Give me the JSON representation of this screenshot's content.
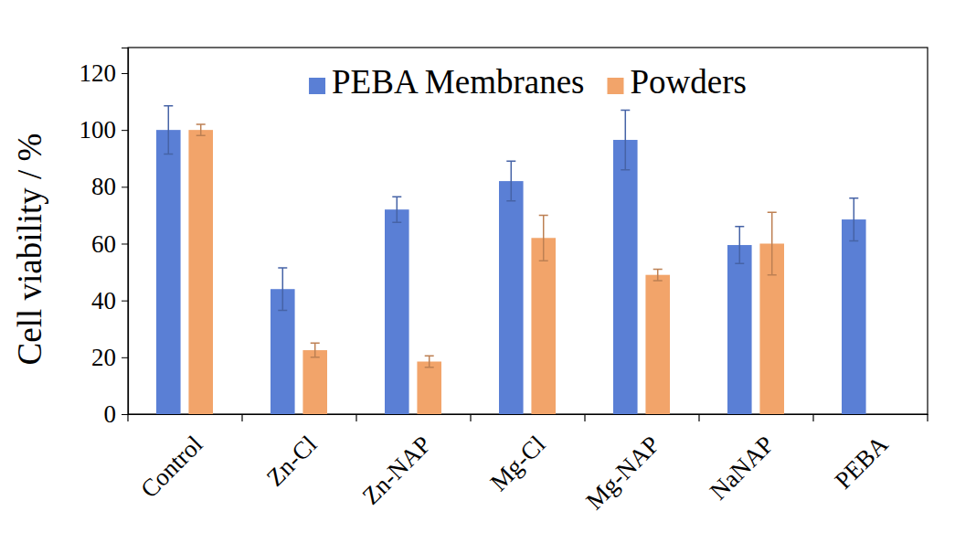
{
  "chart_data": {
    "type": "bar",
    "y_label": "Cell viability / %",
    "categories": [
      "Control",
      "Zn-Cl",
      "Zn-NAP",
      "Mg-Cl",
      "Mg-NAP",
      "NaNAP",
      "PEBA"
    ],
    "series": [
      {
        "name": "PEBA Membranes",
        "color": "#5a7fd5",
        "values": [
          100,
          44,
          72,
          82,
          96.5,
          59.5,
          68.5
        ],
        "errors": [
          8.5,
          7.5,
          4.5,
          7,
          10.5,
          6.5,
          7.5
        ]
      },
      {
        "name": "Powders",
        "color": "#f2a46a",
        "values": [
          100,
          22.5,
          18.5,
          62,
          49,
          60,
          null
        ],
        "errors": [
          2,
          2.5,
          2,
          8,
          2,
          11,
          null
        ]
      }
    ],
    "ylim": [
      0,
      129
    ],
    "yticks": [
      0,
      20,
      40,
      60,
      80,
      100,
      120
    ],
    "legend": "top",
    "grid": false
  }
}
